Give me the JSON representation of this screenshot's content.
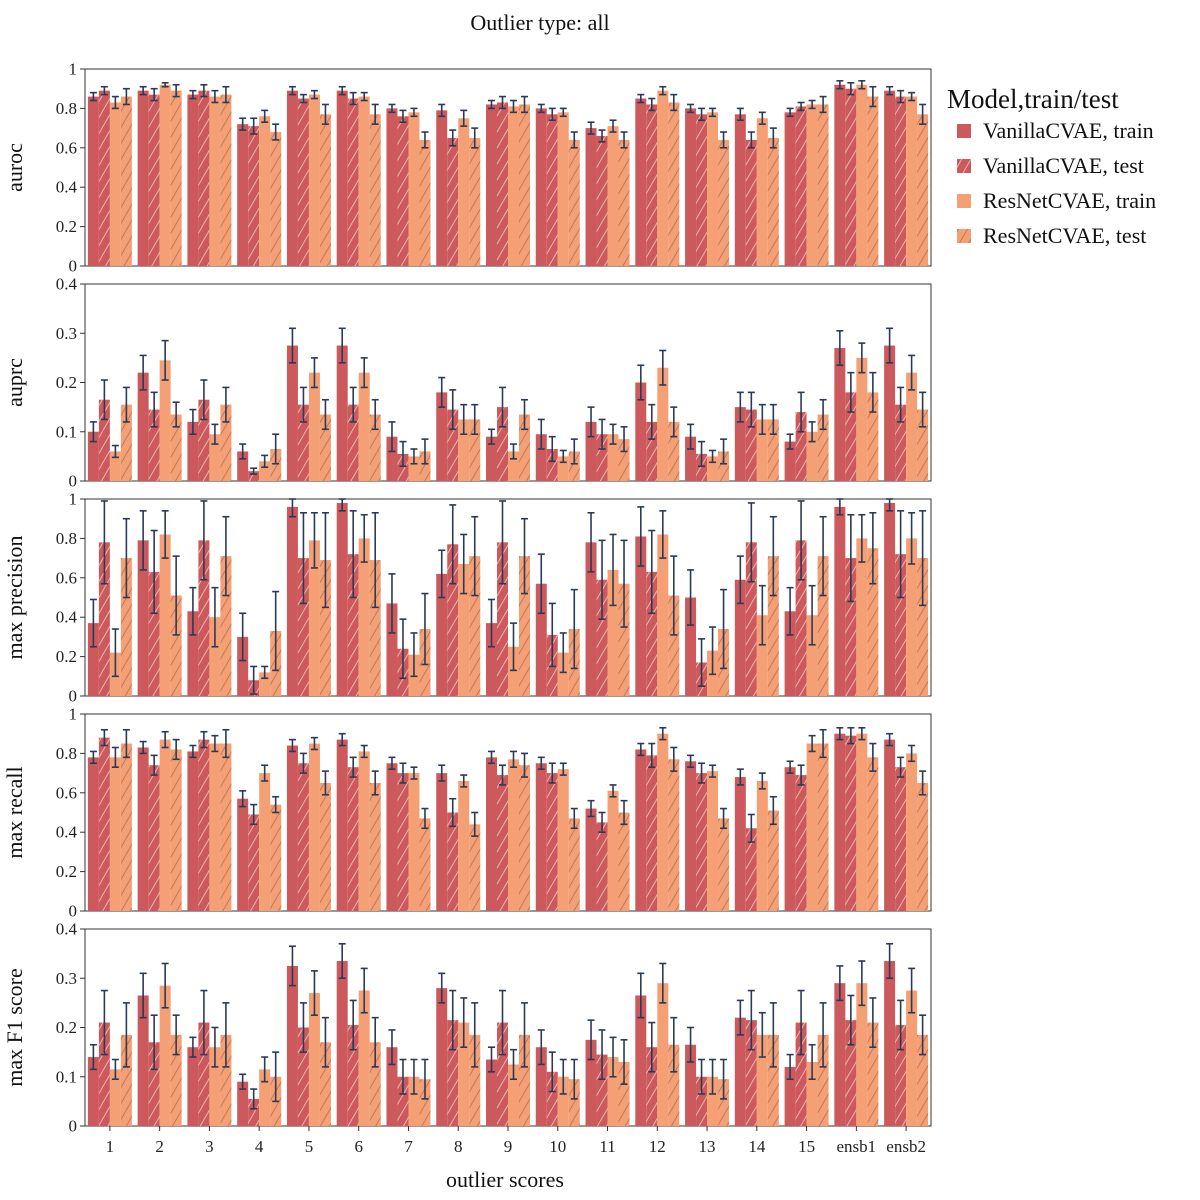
{
  "chart_data": {
    "type": "bar",
    "title": "Outlier type: all",
    "xlabel": "outlier scores",
    "categories": [
      "1",
      "2",
      "3",
      "4",
      "5",
      "6",
      "7",
      "8",
      "9",
      "10",
      "11",
      "12",
      "13",
      "14",
      "15",
      "ensb1",
      "ensb2"
    ],
    "legend": {
      "title": "Model,train/test",
      "placement": "right",
      "entries": [
        {
          "label": "VanillaCVAE, train",
          "color": "#cc5a5c",
          "hatch": false
        },
        {
          "label": "VanillaCVAE, test",
          "color": "#cc5a5c",
          "hatch": true
        },
        {
          "label": "ResNetCVAE, train",
          "color": "#f59f74",
          "hatch": false
        },
        {
          "label": "ResNetCVAE, test",
          "color": "#f59f74",
          "hatch": true
        }
      ]
    },
    "panels": [
      {
        "ylabel": "auroc",
        "ylim": [
          0,
          1
        ],
        "yticks": [
          "0",
          "0.2",
          "0.4",
          "0.6",
          "0.8",
          "1"
        ],
        "ytick_values": [
          0,
          0.2,
          0.4,
          0.6,
          0.8,
          1
        ],
        "series": [
          {
            "name": "VanillaCVAE, train",
            "values": [
              0.86,
              0.89,
              0.87,
              0.72,
              0.89,
              0.89,
              0.8,
              0.79,
              0.82,
              0.8,
              0.7,
              0.85,
              0.8,
              0.77,
              0.78,
              0.92,
              0.89
            ],
            "err": [
              0.02,
              0.02,
              0.02,
              0.03,
              0.02,
              0.02,
              0.02,
              0.03,
              0.02,
              0.02,
              0.03,
              0.02,
              0.02,
              0.03,
              0.02,
              0.02,
              0.02
            ]
          },
          {
            "name": "VanillaCVAE, test",
            "values": [
              0.89,
              0.87,
              0.89,
              0.71,
              0.85,
              0.85,
              0.76,
              0.65,
              0.83,
              0.77,
              0.66,
              0.82,
              0.77,
              0.64,
              0.81,
              0.9,
              0.86
            ],
            "err": [
              0.02,
              0.03,
              0.03,
              0.04,
              0.02,
              0.03,
              0.03,
              0.04,
              0.03,
              0.03,
              0.03,
              0.03,
              0.03,
              0.04,
              0.02,
              0.03,
              0.03
            ]
          },
          {
            "name": "ResNetCVAE, train",
            "values": [
              0.83,
              0.92,
              0.86,
              0.76,
              0.87,
              0.86,
              0.78,
              0.75,
              0.81,
              0.78,
              0.71,
              0.89,
              0.78,
              0.75,
              0.82,
              0.92,
              0.86
            ],
            "err": [
              0.03,
              0.01,
              0.03,
              0.03,
              0.02,
              0.02,
              0.02,
              0.04,
              0.03,
              0.02,
              0.03,
              0.02,
              0.02,
              0.03,
              0.02,
              0.02,
              0.02
            ]
          },
          {
            "name": "ResNetCVAE, test",
            "values": [
              0.86,
              0.89,
              0.87,
              0.68,
              0.77,
              0.77,
              0.64,
              0.65,
              0.82,
              0.64,
              0.64,
              0.83,
              0.64,
              0.65,
              0.82,
              0.86,
              0.77
            ],
            "err": [
              0.04,
              0.03,
              0.04,
              0.04,
              0.05,
              0.05,
              0.04,
              0.05,
              0.04,
              0.04,
              0.04,
              0.04,
              0.04,
              0.05,
              0.04,
              0.05,
              0.05
            ]
          }
        ]
      },
      {
        "ylabel": "auprc",
        "ylim": [
          0,
          0.4
        ],
        "yticks": [
          "0",
          "0.1",
          "0.2",
          "0.3",
          "0.4"
        ],
        "ytick_values": [
          0,
          0.1,
          0.2,
          0.3,
          0.4
        ],
        "series": [
          {
            "name": "VanillaCVAE, train",
            "values": [
              0.1,
              0.22,
              0.12,
              0.06,
              0.275,
              0.275,
              0.09,
              0.18,
              0.09,
              0.095,
              0.12,
              0.2,
              0.09,
              0.15,
              0.08,
              0.27,
              0.275
            ],
            "err": [
              0.02,
              0.035,
              0.025,
              0.015,
              0.035,
              0.035,
              0.03,
              0.03,
              0.015,
              0.03,
              0.03,
              0.035,
              0.025,
              0.03,
              0.015,
              0.035,
              0.035
            ]
          },
          {
            "name": "VanillaCVAE, test",
            "values": [
              0.165,
              0.145,
              0.165,
              0.02,
              0.155,
              0.155,
              0.055,
              0.145,
              0.15,
              0.065,
              0.095,
              0.12,
              0.055,
              0.145,
              0.14,
              0.18,
              0.155
            ],
            "err": [
              0.04,
              0.035,
              0.04,
              0.006,
              0.035,
              0.035,
              0.025,
              0.04,
              0.04,
              0.025,
              0.03,
              0.035,
              0.025,
              0.035,
              0.04,
              0.04,
              0.035
            ]
          },
          {
            "name": "ResNetCVAE, train",
            "values": [
              0.06,
              0.245,
              0.095,
              0.04,
              0.22,
              0.22,
              0.05,
              0.125,
              0.06,
              0.05,
              0.095,
              0.23,
              0.05,
              0.125,
              0.1,
              0.25,
              0.22
            ],
            "err": [
              0.012,
              0.04,
              0.02,
              0.012,
              0.03,
              0.03,
              0.015,
              0.03,
              0.015,
              0.012,
              0.02,
              0.035,
              0.012,
              0.03,
              0.02,
              0.03,
              0.035
            ]
          },
          {
            "name": "ResNetCVAE, test",
            "values": [
              0.155,
              0.135,
              0.155,
              0.065,
              0.135,
              0.135,
              0.06,
              0.125,
              0.135,
              0.06,
              0.085,
              0.12,
              0.06,
              0.125,
              0.135,
              0.18,
              0.145
            ],
            "err": [
              0.035,
              0.025,
              0.035,
              0.03,
              0.03,
              0.03,
              0.025,
              0.03,
              0.03,
              0.025,
              0.025,
              0.03,
              0.025,
              0.03,
              0.03,
              0.04,
              0.035
            ]
          }
        ]
      },
      {
        "ylabel": "max precision",
        "ylim": [
          0,
          1
        ],
        "yticks": [
          "0",
          "0.2",
          "0.4",
          "0.6",
          "0.8",
          "1"
        ],
        "ytick_values": [
          0,
          0.2,
          0.4,
          0.6,
          0.8,
          1
        ],
        "series": [
          {
            "name": "VanillaCVAE, train",
            "values": [
              0.37,
              0.79,
              0.43,
              0.3,
              0.96,
              0.98,
              0.47,
              0.62,
              0.37,
              0.57,
              0.78,
              0.81,
              0.5,
              0.59,
              0.43,
              0.96,
              0.98
            ],
            "err": [
              0.12,
              0.15,
              0.12,
              0.12,
              0.05,
              0.04,
              0.15,
              0.12,
              0.12,
              0.15,
              0.15,
              0.15,
              0.14,
              0.12,
              0.12,
              0.04,
              0.04
            ]
          },
          {
            "name": "VanillaCVAE, test",
            "values": [
              0.78,
              0.63,
              0.79,
              0.08,
              0.7,
              0.72,
              0.24,
              0.77,
              0.78,
              0.31,
              0.59,
              0.63,
              0.17,
              0.78,
              0.79,
              0.7,
              0.72
            ],
            "err": [
              0.21,
              0.21,
              0.2,
              0.07,
              0.23,
              0.22,
              0.15,
              0.2,
              0.21,
              0.16,
              0.2,
              0.21,
              0.12,
              0.2,
              0.2,
              0.22,
              0.22
            ]
          },
          {
            "name": "ResNetCVAE, train",
            "values": [
              0.22,
              0.82,
              0.4,
              0.12,
              0.79,
              0.8,
              0.21,
              0.67,
              0.25,
              0.22,
              0.64,
              0.82,
              0.23,
              0.41,
              0.41,
              0.8,
              0.8
            ],
            "err": [
              0.12,
              0.12,
              0.15,
              0.03,
              0.14,
              0.12,
              0.11,
              0.15,
              0.12,
              0.1,
              0.18,
              0.12,
              0.12,
              0.15,
              0.15,
              0.12,
              0.13
            ]
          },
          {
            "name": "ResNetCVAE, test",
            "values": [
              0.7,
              0.51,
              0.71,
              0.33,
              0.69,
              0.69,
              0.34,
              0.71,
              0.71,
              0.34,
              0.57,
              0.51,
              0.34,
              0.71,
              0.71,
              0.75,
              0.7
            ],
            "err": [
              0.2,
              0.2,
              0.2,
              0.2,
              0.24,
              0.24,
              0.18,
              0.2,
              0.19,
              0.2,
              0.22,
              0.2,
              0.2,
              0.2,
              0.2,
              0.18,
              0.24
            ]
          }
        ]
      },
      {
        "ylabel": "max recall",
        "ylim": [
          0,
          1
        ],
        "yticks": [
          "0",
          "0.2",
          "0.4",
          "0.6",
          "0.8",
          "1"
        ],
        "ytick_values": [
          0,
          0.2,
          0.4,
          0.6,
          0.8,
          1
        ],
        "series": [
          {
            "name": "VanillaCVAE, train",
            "values": [
              0.78,
              0.83,
              0.81,
              0.57,
              0.84,
              0.87,
              0.75,
              0.7,
              0.78,
              0.75,
              0.52,
              0.82,
              0.76,
              0.68,
              0.73,
              0.9,
              0.87
            ],
            "err": [
              0.03,
              0.03,
              0.03,
              0.04,
              0.03,
              0.03,
              0.03,
              0.04,
              0.03,
              0.03,
              0.04,
              0.03,
              0.03,
              0.04,
              0.03,
              0.03,
              0.03
            ]
          },
          {
            "name": "VanillaCVAE, test",
            "values": [
              0.88,
              0.74,
              0.87,
              0.49,
              0.75,
              0.73,
              0.7,
              0.5,
              0.69,
              0.7,
              0.45,
              0.79,
              0.7,
              0.42,
              0.69,
              0.89,
              0.73
            ],
            "err": [
              0.04,
              0.05,
              0.04,
              0.05,
              0.05,
              0.05,
              0.05,
              0.07,
              0.05,
              0.05,
              0.05,
              0.06,
              0.05,
              0.07,
              0.05,
              0.04,
              0.05
            ]
          },
          {
            "name": "ResNetCVAE, train",
            "values": [
              0.78,
              0.87,
              0.85,
              0.7,
              0.85,
              0.81,
              0.7,
              0.66,
              0.77,
              0.72,
              0.61,
              0.9,
              0.71,
              0.66,
              0.85,
              0.9,
              0.8
            ],
            "err": [
              0.05,
              0.04,
              0.04,
              0.04,
              0.03,
              0.03,
              0.03,
              0.03,
              0.04,
              0.03,
              0.03,
              0.03,
              0.03,
              0.04,
              0.04,
              0.03,
              0.04
            ]
          },
          {
            "name": "ResNetCVAE, test",
            "values": [
              0.85,
              0.82,
              0.85,
              0.54,
              0.65,
              0.65,
              0.47,
              0.44,
              0.74,
              0.47,
              0.5,
              0.77,
              0.47,
              0.51,
              0.85,
              0.78,
              0.65
            ],
            "err": [
              0.07,
              0.05,
              0.07,
              0.04,
              0.06,
              0.06,
              0.05,
              0.06,
              0.06,
              0.05,
              0.06,
              0.06,
              0.05,
              0.07,
              0.07,
              0.07,
              0.06
            ]
          }
        ]
      },
      {
        "ylabel": "max F1 score",
        "ylim": [
          0,
          0.4
        ],
        "yticks": [
          "0",
          "0.1",
          "0.2",
          "0.3",
          "0.4"
        ],
        "ytick_values": [
          0,
          0.1,
          0.2,
          0.3,
          0.4
        ],
        "series": [
          {
            "name": "VanillaCVAE, train",
            "values": [
              0.14,
              0.265,
              0.16,
              0.09,
              0.325,
              0.335,
              0.16,
              0.28,
              0.135,
              0.16,
              0.175,
              0.265,
              0.165,
              0.22,
              0.12,
              0.29,
              0.335
            ],
            "err": [
              0.025,
              0.045,
              0.02,
              0.015,
              0.04,
              0.035,
              0.035,
              0.03,
              0.025,
              0.035,
              0.04,
              0.045,
              0.035,
              0.035,
              0.025,
              0.035,
              0.035
            ]
          },
          {
            "name": "VanillaCVAE, test",
            "values": [
              0.21,
              0.17,
              0.21,
              0.055,
              0.2,
              0.205,
              0.1,
              0.215,
              0.21,
              0.11,
              0.145,
              0.16,
              0.1,
              0.215,
              0.21,
              0.215,
              0.205
            ],
            "err": [
              0.065,
              0.055,
              0.065,
              0.02,
              0.05,
              0.05,
              0.035,
              0.06,
              0.065,
              0.04,
              0.05,
              0.05,
              0.035,
              0.06,
              0.065,
              0.05,
              0.05
            ]
          },
          {
            "name": "ResNetCVAE, train",
            "values": [
              0.115,
              0.285,
              0.16,
              0.115,
              0.27,
              0.275,
              0.1,
              0.21,
              0.125,
              0.1,
              0.14,
              0.29,
              0.1,
              0.185,
              0.13,
              0.29,
              0.275
            ],
            "err": [
              0.02,
              0.045,
              0.04,
              0.025,
              0.045,
              0.045,
              0.035,
              0.05,
              0.03,
              0.035,
              0.04,
              0.04,
              0.035,
              0.045,
              0.035,
              0.045,
              0.045
            ]
          },
          {
            "name": "ResNetCVAE, test",
            "values": [
              0.185,
              0.185,
              0.185,
              0.1,
              0.17,
              0.17,
              0.095,
              0.185,
              0.185,
              0.095,
              0.13,
              0.165,
              0.095,
              0.185,
              0.185,
              0.21,
              0.185
            ],
            "err": [
              0.065,
              0.04,
              0.065,
              0.05,
              0.05,
              0.05,
              0.04,
              0.065,
              0.065,
              0.04,
              0.045,
              0.055,
              0.04,
              0.065,
              0.065,
              0.05,
              0.04
            ]
          }
        ]
      }
    ]
  }
}
